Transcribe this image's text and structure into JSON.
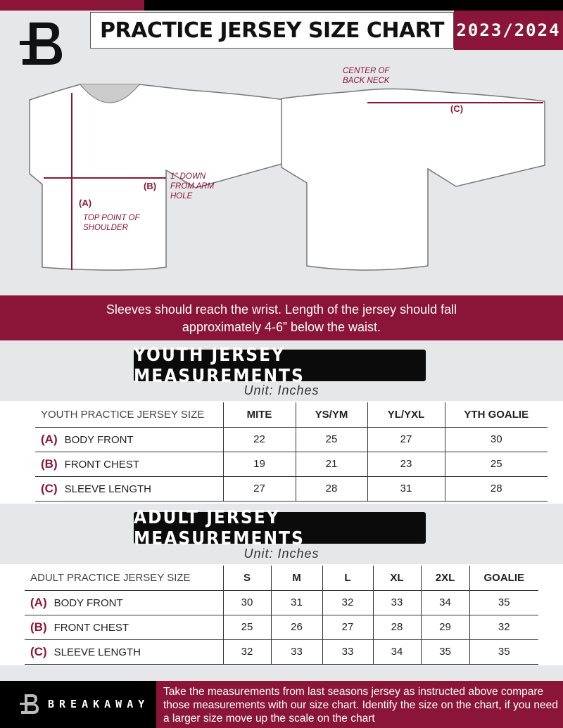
{
  "header": {
    "title": "PRACTICE JERSEY SIZE CHART",
    "season": "2023/2024"
  },
  "diagram": {
    "label_a": "(A)",
    "label_b": "(B)",
    "label_c": "(C)",
    "note_a": "TOP POINT OF SHOULDER",
    "note_b": "1\" DOWN FROM ARM HOLE",
    "note_c": "CENTER OF BACK NECK"
  },
  "banner": {
    "line1": "Sleeves should reach the wrist. Length of the jersey should fall",
    "line2": "approximately 4-6” below the waist."
  },
  "youth": {
    "title": "YOUTH JERSEY MEASUREMENTS",
    "unit": "Unit: Inches",
    "header": [
      "YOUTH PRACTICE JERSEY SIZE",
      "MITE",
      "YS/YM",
      "YL/YXL",
      "YTH GOALIE"
    ],
    "rows": [
      {
        "key": "(A)",
        "label": "BODY FRONT",
        "values": [
          "22",
          "25",
          "27",
          "30"
        ]
      },
      {
        "key": "(B)",
        "label": "FRONT CHEST",
        "values": [
          "19",
          "21",
          "23",
          "25"
        ]
      },
      {
        "key": "(C)",
        "label": "SLEEVE LENGTH",
        "values": [
          "27",
          "28",
          "31",
          "28"
        ]
      }
    ]
  },
  "adult": {
    "title": "ADULT JERSEY MEASUREMENTS",
    "unit": "Unit: Inches",
    "header": [
      "ADULT PRACTICE JERSEY SIZE",
      "S",
      "M",
      "L",
      "XL",
      "2XL",
      "GOALIE"
    ],
    "rows": [
      {
        "key": "(A)",
        "label": "BODY FRONT",
        "values": [
          "30",
          "31",
          "32",
          "33",
          "34",
          "35"
        ]
      },
      {
        "key": "(B)",
        "label": "FRONT CHEST",
        "values": [
          "25",
          "26",
          "27",
          "28",
          "29",
          "32"
        ]
      },
      {
        "key": "(C)",
        "label": "SLEEVE LENGTH",
        "values": [
          "32",
          "33",
          "33",
          "34",
          "35",
          "35"
        ]
      }
    ]
  },
  "footer": {
    "brand": "BREAKAWAY",
    "text": "Take the measurements from last seasons jersey as instructed above compare those measurements  with our size chart. Identify the size on the chart, if you need a larger size move up the scale on the chart"
  },
  "colors": {
    "brand_red": "#8a1538",
    "black": "#0b0b0b"
  }
}
